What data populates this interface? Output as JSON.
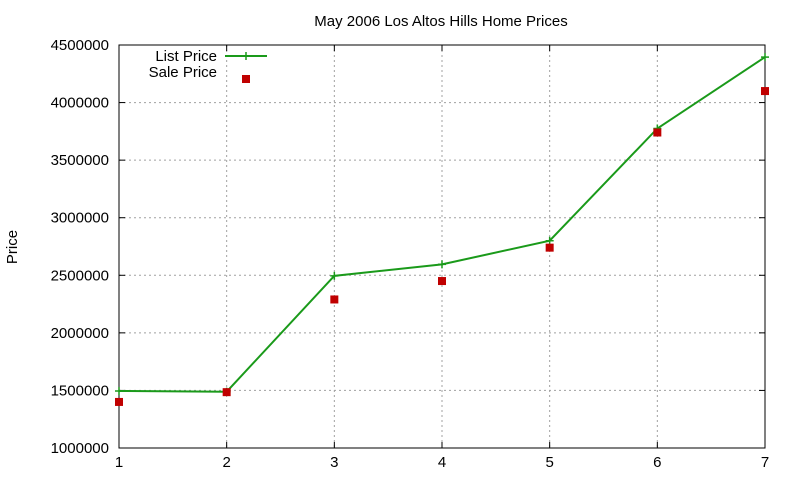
{
  "chart_data": {
    "type": "line",
    "title": "May 2006 Los Altos Hills Home Prices",
    "xlabel": "",
    "ylabel": "Price",
    "x": [
      1,
      2,
      3,
      4,
      5,
      6,
      7
    ],
    "xlim": [
      1,
      7
    ],
    "ylim": [
      1000000,
      4500000
    ],
    "xticks": [
      "1",
      "2",
      "3",
      "4",
      "5",
      "6",
      "7"
    ],
    "yticks": [
      "1000000",
      "1500000",
      "2000000",
      "2500000",
      "3000000",
      "3500000",
      "4000000",
      "4500000"
    ],
    "grid": true,
    "legend_position": "top-left",
    "series": [
      {
        "name": "List Price",
        "style": "line-with-plus-markers",
        "color": "#1a9a1a",
        "values": [
          1495000,
          1489000,
          2495000,
          2595000,
          2800000,
          3775000,
          4395000
        ]
      },
      {
        "name": "Sale Price",
        "style": "square-markers",
        "color": "#c00000",
        "values": [
          1400000,
          1485000,
          2290000,
          2450000,
          2740000,
          3740000,
          4100000
        ]
      }
    ]
  }
}
